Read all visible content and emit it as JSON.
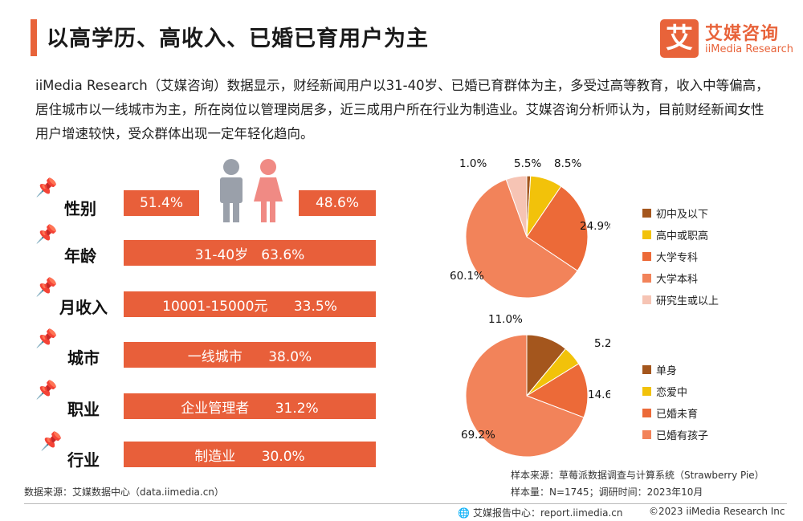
{
  "title": "以高学历、高收入、已婚已育用户为主",
  "logo": {
    "mark": "艾",
    "name": "艾媒咨询",
    "en": "iiMedia Research"
  },
  "description": "iiMedia Research（艾媒咨询）数据显示，财经新闻用户以31-40岁、已婚已育群体为主，多受过高等教育，收入中等偏高，居住城市以一线城市为主，所在岗位以管理岗居多，近三成用户所在行业为制造业。艾媒咨询分析师认为，目前财经新闻女性用户增速较快，受众群体出现一定年轻化趋向。",
  "profile": {
    "pin_icon": "pushpin-icon",
    "rows": [
      {
        "label": "性别",
        "male": "51.4%",
        "female": "48.6%"
      },
      {
        "label": "年龄",
        "value": "31-40岁   63.6%"
      },
      {
        "label": "月收入",
        "value": "10001-15000元      33.5%"
      },
      {
        "label": "城市",
        "value": "一线城市      38.0%"
      },
      {
        "label": "职业",
        "value": "企业管理者      31.2%"
      },
      {
        "label": "行业",
        "value": "制造业      30.0%"
      }
    ],
    "colors": {
      "bar": "#e85f3a",
      "male_icon": "#9aa0aa",
      "female_icon": "#f08a84"
    }
  },
  "chart_data": [
    {
      "type": "pie",
      "title": "",
      "categories": [
        "初中及以下",
        "高中或职高",
        "大学专科",
        "大学本科",
        "研究生或以上"
      ],
      "values": [
        1.0,
        8.5,
        24.9,
        60.1,
        5.5
      ],
      "labels": [
        "1.0%",
        "8.5%",
        "24.9%",
        "60.1%",
        "5.5%"
      ],
      "colors": [
        "#a4561d",
        "#f2c20a",
        "#ec6a38",
        "#f2835a",
        "#f6c4b4"
      ],
      "legend": "right"
    },
    {
      "type": "pie",
      "title": "",
      "categories": [
        "单身",
        "恋爱中",
        "已婚未育",
        "已婚有孩子"
      ],
      "values": [
        11.0,
        5.2,
        14.6,
        69.2
      ],
      "labels": [
        "11.0%",
        "5.2%",
        "14.6%",
        "69.2%"
      ],
      "colors": [
        "#a4561d",
        "#f2c20a",
        "#ec6a38",
        "#f2835a"
      ],
      "legend": "right"
    }
  ],
  "source_left": "数据来源：艾媒数据中心（data.iimedia.cn）",
  "sample_source": "样本来源：草莓派数据调查与计算系统（Strawberry Pie）",
  "sample_info": "样本量：N=1745；调研时间：2023年10月",
  "footer": {
    "report_center": "艾媒报告中心：report.iimedia.cn",
    "copyright": "©2023  iiMedia Research  Inc"
  }
}
